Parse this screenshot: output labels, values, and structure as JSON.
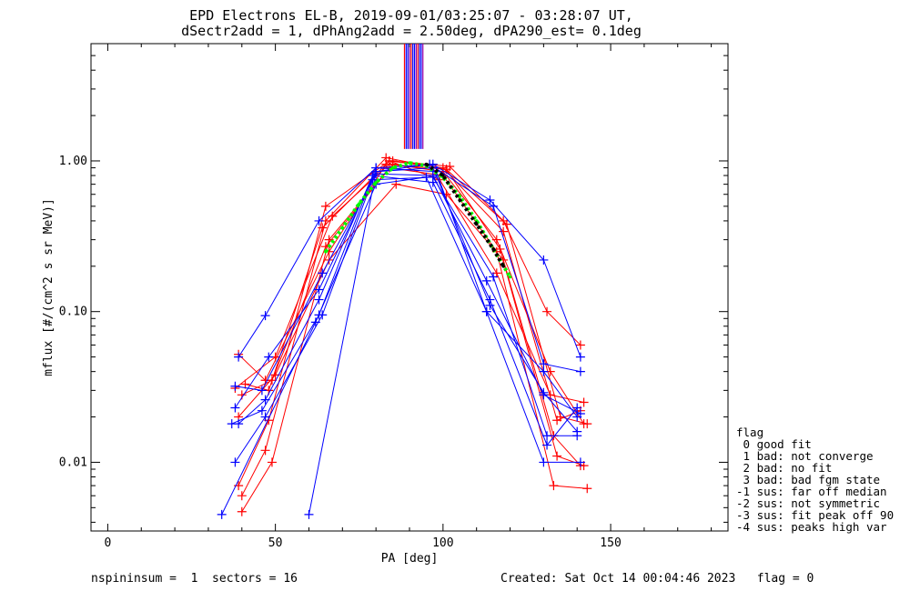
{
  "title_line1": "EPD Electrons EL-B, 2019-09-01/03:25:07 - 03:28:07 UT,",
  "title_line2": "dSectr2add = 1, dPhAng2add = 2.50deg, dPA290_est=   0.1deg",
  "xlabel": "PA [deg]",
  "ylabel": "mflux [#/(cm^2 s sr MeV)]",
  "footer_left": "nspininsum =  1  sectors = 16",
  "footer_right": "Created: Sat Oct 14 00:04:46 2023   flag = 0",
  "legend": {
    "title": "flag",
    "items": [
      " 0 good fit",
      " 1 bad: not converge",
      " 2 bad: no fit",
      " 3 bad: bad fgm state",
      "-1 sus: far off median",
      "-2 sus: not symmetric",
      "-3 sus: fit peak off 90",
      "-4 sus: peaks high var"
    ]
  },
  "colors": {
    "red": "#ff0000",
    "blue": "#0000ff",
    "green": "#00ff00",
    "black": "#000000",
    "purple": "#a000a0"
  },
  "chart_data": {
    "type": "line",
    "xscale": "linear",
    "yscale": "log",
    "xlim": [
      -5,
      185
    ],
    "ylim": [
      0.0035,
      6.0
    ],
    "xticks": [
      0,
      50,
      100,
      150
    ],
    "xtick_labels": [
      "0",
      "50",
      "100",
      "150"
    ],
    "yticks": [
      0.01,
      0.1,
      1.0
    ],
    "ytick_labels": [
      "0.01",
      "0.10",
      "1.00"
    ],
    "vertical_lines_x": [
      88.5,
      89,
      89.5,
      90,
      90.5,
      91,
      91.5,
      92,
      92.5,
      93,
      93.5,
      94
    ],
    "vertical_lines_y": [
      1.2,
      6.0
    ],
    "series": [
      {
        "color": "red",
        "x": [
          40,
          47,
          65,
          83,
          101,
          119,
          135,
          143
        ],
        "y": [
          0.006,
          0.012,
          0.4,
          1.05,
          0.88,
          0.38,
          0.02,
          0.018
        ]
      },
      {
        "color": "red",
        "x": [
          39,
          48,
          65,
          84,
          100,
          118,
          134,
          141
        ],
        "y": [
          0.007,
          0.019,
          0.5,
          1.0,
          0.9,
          0.34,
          0.019,
          0.022
        ]
      },
      {
        "color": "red",
        "x": [
          40,
          49,
          66,
          84,
          100,
          116,
          133,
          143
        ],
        "y": [
          0.0047,
          0.01,
          0.3,
          0.9,
          0.8,
          0.25,
          0.007,
          0.0067
        ]
      },
      {
        "color": "red",
        "x": [
          38,
          50,
          67,
          85,
          102,
          118,
          131,
          141
        ],
        "y": [
          0.031,
          0.05,
          0.43,
          1.0,
          0.92,
          0.4,
          0.1,
          0.06
        ]
      },
      {
        "color": "red",
        "x": [
          40,
          49,
          65,
          85,
          100,
          116,
          132,
          142
        ],
        "y": [
          0.028,
          0.035,
          0.27,
          0.95,
          0.85,
          0.3,
          0.04,
          0.018
        ]
      },
      {
        "color": "red",
        "x": [
          39,
          50,
          66,
          86,
          101,
          118,
          133,
          141
        ],
        "y": [
          0.02,
          0.038,
          0.22,
          0.7,
          0.6,
          0.22,
          0.015,
          0.0095
        ]
      },
      {
        "color": "red",
        "x": [
          41,
          48,
          64,
          84,
          99,
          116,
          132,
          142
        ],
        "y": [
          0.033,
          0.03,
          0.36,
          1.0,
          0.75,
          0.18,
          0.028,
          0.025
        ]
      },
      {
        "color": "red",
        "x": [
          39,
          47,
          66,
          83,
          101,
          117,
          134,
          142
        ],
        "y": [
          0.052,
          0.035,
          0.25,
          0.95,
          0.88,
          0.26,
          0.011,
          0.0095
        ]
      },
      {
        "color": "blue",
        "x": [
          39,
          47,
          63,
          80,
          97,
          114,
          130,
          141
        ],
        "y": [
          0.05,
          0.094,
          0.4,
          0.9,
          0.95,
          0.55,
          0.22,
          0.05
        ]
      },
      {
        "color": "blue",
        "x": [
          37,
          46,
          63,
          80,
          98,
          113,
          130,
          141
        ],
        "y": [
          0.018,
          0.022,
          0.095,
          0.9,
          0.85,
          0.1,
          0.01,
          0.01
        ]
      },
      {
        "color": "blue",
        "x": [
          38,
          47,
          64,
          79,
          97,
          115,
          131,
          140
        ],
        "y": [
          0.01,
          0.02,
          0.095,
          0.75,
          0.78,
          0.17,
          0.015,
          0.015
        ]
      },
      {
        "color": "blue",
        "x": [
          34,
          62,
          80,
          95,
          113,
          130,
          140
        ],
        "y": [
          0.0045,
          0.085,
          0.7,
          0.78,
          0.1,
          0.04,
          0.02
        ]
      },
      {
        "color": "blue",
        "x": [
          60,
          80,
          97,
          114,
          130,
          140
        ],
        "y": [
          0.0045,
          0.85,
          0.9,
          0.11,
          0.029,
          0.016
        ]
      },
      {
        "color": "blue",
        "x": [
          38,
          48,
          63,
          80,
          96,
          115,
          130,
          141
        ],
        "y": [
          0.023,
          0.05,
          0.14,
          0.85,
          0.95,
          0.5,
          0.045,
          0.04
        ]
      },
      {
        "color": "blue",
        "x": [
          39,
          47,
          63,
          79,
          97,
          114,
          131,
          140
        ],
        "y": [
          0.018,
          0.026,
          0.12,
          0.8,
          0.72,
          0.12,
          0.013,
          0.023
        ]
      },
      {
        "color": "blue",
        "x": [
          38,
          46,
          64,
          80,
          97,
          113,
          130,
          141
        ],
        "y": [
          0.032,
          0.03,
          0.18,
          0.82,
          0.8,
          0.16,
          0.028,
          0.021
        ]
      },
      {
        "color": "green",
        "dashed": true,
        "x": [
          65,
          70,
          75,
          80,
          85,
          90,
          95,
          100,
          105,
          110,
          115,
          120
        ],
        "y": [
          0.25,
          0.36,
          0.52,
          0.72,
          0.9,
          0.97,
          0.93,
          0.78,
          0.58,
          0.4,
          0.26,
          0.17
        ]
      },
      {
        "color": "black",
        "dashed": true,
        "x": [
          95,
          100,
          105,
          110,
          115,
          118
        ],
        "y": [
          0.95,
          0.8,
          0.55,
          0.38,
          0.26,
          0.2
        ]
      }
    ]
  }
}
